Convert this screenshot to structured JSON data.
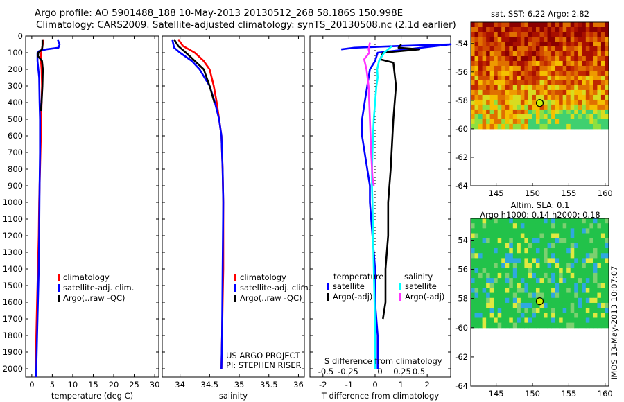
{
  "header": {
    "title_line1": "Argo profile: AO 5901488_188 10-May-2013 20130512_268 58.186S 150.998E",
    "title_line2": "Climatology: CARS2009. Satellite-adjusted climatology: synTS_20130508.nc (2.1d earlier)"
  },
  "colors": {
    "climatology": "#ff0000",
    "satellite": "#0000ff",
    "argo": "#000000",
    "sat_s": "#00ffff",
    "argo_s": "#ff33ff"
  },
  "chart_data": [
    {
      "type": "line",
      "id": "temperature",
      "xlabel": "temperature (deg C)",
      "xlim": [
        -1.5,
        31
      ],
      "ylim": [
        2050,
        0
      ],
      "xticks": [
        0,
        5,
        10,
        15,
        20,
        25,
        30
      ],
      "yticks": [
        0,
        100,
        200,
        300,
        400,
        500,
        600,
        700,
        800,
        900,
        1000,
        1100,
        1200,
        1300,
        1400,
        1500,
        1600,
        1700,
        1800,
        1900,
        2000
      ],
      "legend": [
        "climatology",
        "satellite-adj. clim.",
        "Argo(..raw -QC)"
      ],
      "series": [
        {
          "name": "climatology",
          "color": "#ff0000",
          "x": [
            2.9,
            2.6,
            2.3,
            2.2,
            2.4,
            2.5,
            2.4,
            2.3,
            2.2,
            2.0,
            1.8,
            1.7,
            1.5,
            1.3,
            1.1,
            1.0,
            0.9
          ],
          "y": [
            20,
            60,
            100,
            140,
            200,
            300,
            400,
            500,
            600,
            800,
            1000,
            1200,
            1400,
            1600,
            1800,
            2000,
            2050
          ]
        },
        {
          "name": "satellite-adj. clim.",
          "color": "#0000ff",
          "x": [
            6.3,
            6.8,
            6.5,
            3.5,
            1.8,
            1.4,
            1.4,
            1.8,
            1.9,
            2.0,
            2.0,
            1.9,
            1.8,
            1.7,
            1.5,
            1.3,
            1.1,
            1.0
          ],
          "y": [
            20,
            50,
            70,
            80,
            90,
            100,
            150,
            250,
            400,
            500,
            700,
            900,
            1200,
            1400,
            1600,
            1800,
            2000,
            2050
          ]
        },
        {
          "name": "Argo(..raw -QC)",
          "color": "#000000",
          "x": [
            2.6,
            2.6,
            2.5,
            1.6,
            1.5,
            2.5,
            2.7,
            2.6,
            2.4,
            2.2
          ],
          "y": [
            20,
            60,
            80,
            100,
            120,
            150,
            200,
            300,
            400,
            450
          ]
        }
      ]
    },
    {
      "type": "line",
      "id": "salinity",
      "xlabel": "salinity",
      "xlim": [
        33.7,
        36.1
      ],
      "ylim": [
        2050,
        0
      ],
      "xticks": [
        34,
        34.5,
        35,
        35.5,
        36
      ],
      "legend": [
        "climatology",
        "satellite-adj. clim.",
        "Argo(..raw -QC)"
      ],
      "series": [
        {
          "name": "climatology",
          "color": "#ff0000",
          "x": [
            33.97,
            34.05,
            34.25,
            34.4,
            34.5,
            34.57,
            34.62,
            34.66,
            34.7,
            34.72,
            34.73,
            34.73,
            34.73,
            34.72,
            34.71,
            34.7
          ],
          "y": [
            20,
            60,
            100,
            150,
            200,
            300,
            400,
            500,
            600,
            800,
            1000,
            1200,
            1400,
            1600,
            1800,
            2000
          ]
        },
        {
          "name": "satellite-adj. clim.",
          "color": "#0000ff",
          "x": [
            33.87,
            33.9,
            34.0,
            34.2,
            34.33,
            34.5,
            34.59,
            34.66,
            34.7,
            34.72,
            34.73,
            34.72,
            34.71,
            34.7
          ],
          "y": [
            20,
            70,
            100,
            150,
            200,
            300,
            400,
            500,
            600,
            800,
            1000,
            1400,
            1800,
            2000
          ]
        },
        {
          "name": "Argo(..raw -QC)",
          "color": "#000000",
          "x": [
            33.9,
            33.97,
            34.1,
            34.25,
            34.4,
            34.5,
            34.58
          ],
          "y": [
            20,
            60,
            100,
            150,
            200,
            300,
            400
          ]
        }
      ]
    },
    {
      "type": "line",
      "id": "difference",
      "xlabel": "T difference from climatology",
      "xlabel2": "S difference from climatology",
      "xlim": [
        -2.5,
        2.9
      ],
      "ylim": [
        2050,
        0
      ],
      "xticks": [
        -2,
        -1,
        0,
        1,
        2
      ],
      "xticks_s": [
        -0.5,
        -0.25,
        0,
        0.25,
        0.5
      ],
      "legend_titles": [
        "temperature",
        "salinity"
      ],
      "legend": [
        "satellite",
        "Argo(-adj)",
        "satellite",
        "Argo(-adj)"
      ],
      "series": [
        {
          "name": "satellite",
          "color": "#0000ff",
          "x": [
            -1.3,
            -0.8,
            0.8,
            2.9,
            0.1,
            0.0,
            -0.2,
            -0.3,
            -0.4,
            -0.5,
            -0.5,
            -0.4,
            -0.3,
            -0.2,
            -0.2,
            -0.1,
            0.0,
            0.0,
            0.1,
            0.1
          ],
          "y": [
            80,
            70,
            60,
            50,
            100,
            150,
            200,
            300,
            400,
            500,
            600,
            700,
            800,
            900,
            1000,
            1200,
            1400,
            1600,
            1800,
            2000
          ]
        },
        {
          "name": "Argo(-adj)",
          "color": "#000000",
          "x": [
            1.0,
            0.9,
            1.7,
            0.3,
            0.2,
            0.7,
            0.8,
            0.7,
            0.6,
            0.5,
            0.5,
            0.4,
            0.4,
            0.3
          ],
          "y": [
            50,
            70,
            80,
            100,
            140,
            160,
            300,
            500,
            800,
            1000,
            1200,
            1400,
            1600,
            1700
          ]
        },
        {
          "name": "satellite",
          "color": "#00ffff",
          "x": [
            0.65,
            0.5,
            0.35,
            0.15,
            0.08,
            0.1,
            0.05,
            0.0,
            -0.05,
            -0.08,
            -0.1,
            -0.12,
            -0.12,
            -0.1,
            -0.08,
            -0.05,
            -0.02,
            0.0,
            0.0
          ],
          "y": [
            60,
            80,
            100,
            150,
            200,
            250,
            300,
            400,
            500,
            600,
            700,
            800,
            900,
            1000,
            1200,
            1400,
            1600,
            1800,
            2000
          ]
        },
        {
          "name": "Argo(-adj)",
          "color": "#ff33ff",
          "x": [
            -0.2,
            -0.25,
            -0.22,
            -0.42,
            -0.33,
            -0.25,
            -0.2,
            -0.15,
            -0.1,
            -0.05
          ],
          "y": [
            40,
            80,
            100,
            140,
            200,
            300,
            500,
            700,
            850,
            900
          ]
        }
      ]
    },
    {
      "type": "heatmap",
      "id": "sst-map",
      "title": "sat. SST: 6.22  Argo: 2.82",
      "xlim": [
        141.5,
        160.5
      ],
      "ylim": [
        -64,
        -52.5
      ],
      "xticks": [
        145,
        150,
        155,
        160
      ],
      "yticks": [
        -54,
        -56,
        -58,
        -60,
        -62,
        -64
      ],
      "data_extent_lat": [
        -60,
        -52.5
      ],
      "marker": {
        "lon": 150.998,
        "lat": -58.186,
        "color": "#c8f000"
      }
    },
    {
      "type": "heatmap",
      "id": "sla-map",
      "title": "Altim. SLA: 0.1",
      "subtitle": "Argo h1000: 0.14  h2000: 0.18",
      "xlim": [
        141.5,
        160.5
      ],
      "ylim": [
        -64,
        -52.5
      ],
      "xticks": [
        145,
        150,
        155,
        160
      ],
      "yticks": [
        -54,
        -56,
        -58,
        -60,
        -62,
        -64
      ],
      "data_extent_lat": [
        -60,
        -52.5
      ],
      "marker": {
        "lon": 150.998,
        "lat": -58.186,
        "color": "#c8f000"
      }
    }
  ],
  "notes": {
    "project": "US ARGO PROJECT",
    "pi": "PI: STEPHEN RISER",
    "stamp": "IMOS 13-May-2013 10:07:07"
  }
}
